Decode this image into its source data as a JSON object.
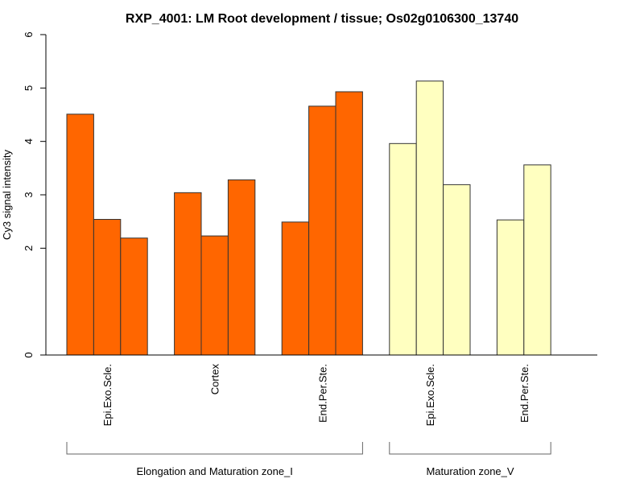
{
  "chart_data": {
    "type": "bar",
    "title": "RXP_4001: LM Root development / tissue; Os02g0106300_13740",
    "xlabel": "",
    "ylabel": "Cy3 signal intensity",
    "ylim": [
      0,
      6
    ],
    "yticks": [
      0,
      2,
      3,
      4,
      5,
      6
    ],
    "grid": false,
    "legend": "none",
    "groups": [
      {
        "name": "Elongation and Maturation zone_I",
        "color": "#ff6600",
        "categories": [
          {
            "label": "Epi.Exo.Scle.",
            "values": [
              4.51,
              2.54,
              2.19
            ]
          },
          {
            "label": "Cortex",
            "values": [
              3.04,
              2.23,
              3.28
            ]
          },
          {
            "label": "End.Per.Ste.",
            "values": [
              2.49,
              4.66,
              4.93
            ]
          }
        ]
      },
      {
        "name": "Maturation zone_V",
        "color": "#ffffc0",
        "categories": [
          {
            "label": "Epi.Exo.Scle.",
            "values": [
              3.96,
              5.13,
              3.19
            ]
          },
          {
            "label": "End.Per.Ste.",
            "values": [
              2.53,
              3.56
            ]
          }
        ]
      }
    ]
  }
}
